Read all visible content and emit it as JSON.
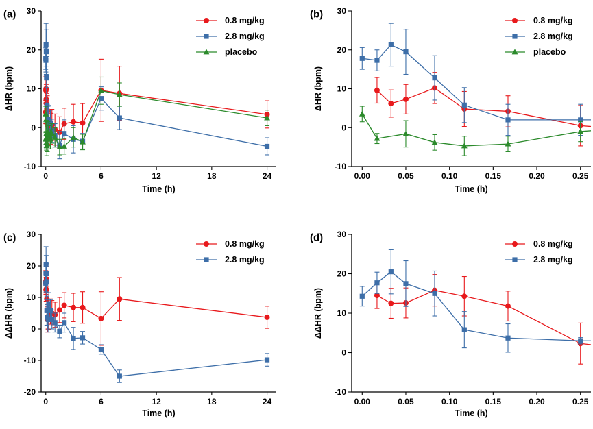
{
  "chart_data": [
    {
      "id": "a",
      "label": "(a)",
      "type": "line",
      "xlabel": "Time (h)",
      "ylabel": "ΔHR (bpm)",
      "xlim": [
        -0.5,
        25
      ],
      "ylim": [
        -10,
        30
      ],
      "xticks": [
        0,
        6,
        12,
        18,
        24
      ],
      "yticks": [
        -10,
        0,
        10,
        20,
        30
      ],
      "xticklabels": [
        "0",
        "6",
        "12",
        "18",
        "24"
      ],
      "yticklabels": [
        "-10",
        "0",
        "10",
        "20",
        "30"
      ],
      "series": [
        {
          "name": "0.8 mg/kg",
          "color": "#e8191c",
          "marker": "circle",
          "x": [
            0,
            0.017,
            0.033,
            0.05,
            0.083,
            0.117,
            0.167,
            0.25,
            0.33,
            0.5,
            0.67,
            1,
            1.5,
            2,
            3,
            4,
            6,
            8,
            24
          ],
          "y": [
            4,
            9.6,
            10,
            7.3,
            6.2,
            4.8,
            4.2,
            0.5,
            0,
            -0.3,
            0.7,
            -0.5,
            -1.2,
            1,
            1.5,
            1.2,
            9.6,
            8.8,
            3.4
          ],
          "err": [
            3,
            3.5,
            3.5,
            3.8,
            4,
            4,
            4,
            4,
            4,
            4,
            4,
            4,
            4,
            4,
            4.5,
            5,
            8,
            7,
            3.5
          ]
        },
        {
          "name": "2.8 mg/kg",
          "color": "#3d6ea8",
          "marker": "square",
          "x": [
            0,
            0.017,
            0.033,
            0.05,
            0.083,
            0.117,
            0.167,
            0.25,
            0.33,
            0.5,
            0.67,
            1,
            1.5,
            2,
            3,
            4,
            6,
            8,
            24
          ],
          "y": [
            17.8,
            17.3,
            21.3,
            19.5,
            12.8,
            5.8,
            2,
            2,
            2.2,
            1,
            -0.8,
            -2,
            -4.5,
            -1.5,
            -3,
            -3.5,
            7.5,
            2.5,
            -4.8
          ],
          "err": [
            2.8,
            3,
            5.5,
            5.8,
            5.5,
            4.5,
            4,
            3.5,
            3.5,
            3.5,
            3,
            3,
            3.5,
            3.5,
            3.5,
            2,
            3,
            3,
            2.2
          ]
        },
        {
          "name": "placebo",
          "color": "#2b8a2b",
          "marker": "triangle",
          "x": [
            0,
            0.017,
            0.033,
            0.05,
            0.083,
            0.117,
            0.167,
            0.25,
            0.33,
            0.5,
            0.67,
            1,
            1.5,
            2,
            3,
            4,
            6,
            8,
            24
          ],
          "y": [
            3.5,
            -2.8,
            -3,
            -1.6,
            -3.8,
            -4.7,
            -4.2,
            -1,
            -2,
            -3,
            -1.5,
            -2.5,
            -5,
            -4.8,
            -2.5,
            -3.7,
            9.5,
            8.5,
            2.5
          ],
          "err": [
            2,
            1.5,
            2,
            3.5,
            2,
            2.5,
            2,
            2.5,
            2.5,
            2.5,
            2.5,
            2.5,
            2,
            2,
            2.5,
            2,
            3.5,
            3,
            2
          ]
        }
      ]
    },
    {
      "id": "b",
      "label": "(b)",
      "type": "line",
      "xlabel": "Time (h)",
      "ylabel": "ΔHR (bpm)",
      "xlim": [
        -0.012,
        0.262
      ],
      "ylim": [
        -10,
        30
      ],
      "xticks": [
        0,
        0.05,
        0.1,
        0.15,
        0.2,
        0.25
      ],
      "yticks": [
        -10,
        0,
        10,
        20,
        30
      ],
      "xticklabels": [
        "0.00",
        "0.05",
        "0.10",
        "0.15",
        "0.20",
        "0.25"
      ],
      "yticklabels": [
        "-10",
        "0",
        "10",
        "20",
        "30"
      ],
      "series": [
        {
          "name": "0.8 mg/kg",
          "color": "#e8191c",
          "marker": "circle",
          "x": [
            0.017,
            0.033,
            0.05,
            0.083,
            0.117,
            0.167,
            0.25,
            0.262
          ],
          "y": [
            9.6,
            6.2,
            7.3,
            10.2,
            4.8,
            4.2,
            0.5,
            0.3
          ],
          "err": [
            3.3,
            3.5,
            3.8,
            4,
            4.5,
            4,
            5.2,
            0
          ]
        },
        {
          "name": "2.8 mg/kg",
          "color": "#3d6ea8",
          "marker": "square",
          "x": [
            0,
            0.017,
            0.033,
            0.05,
            0.083,
            0.117,
            0.167,
            0.25,
            0.262
          ],
          "y": [
            17.8,
            17.3,
            21.3,
            19.5,
            12.8,
            5.8,
            2,
            2,
            2
          ],
          "err": [
            2.8,
            2.7,
            5.5,
            5.8,
            5.7,
            4.5,
            4,
            4,
            0
          ]
        },
        {
          "name": "placebo",
          "color": "#2b8a2b",
          "marker": "triangle",
          "x": [
            0,
            0.017,
            0.05,
            0.083,
            0.117,
            0.167,
            0.25,
            0.262
          ],
          "y": [
            3.5,
            -2.8,
            -1.6,
            -3.8,
            -4.7,
            -4.2,
            -1,
            -0.8
          ],
          "err": [
            2,
            1.3,
            3.4,
            2,
            2.5,
            2,
            2.6,
            0
          ]
        }
      ]
    },
    {
      "id": "c",
      "label": "(c)",
      "type": "line",
      "xlabel": "Time (h)",
      "ylabel": "ΔΔHR (bpm)",
      "xlim": [
        -0.5,
        25
      ],
      "ylim": [
        -20,
        30
      ],
      "xticks": [
        0,
        6,
        12,
        18,
        24
      ],
      "yticks": [
        -20,
        -10,
        0,
        10,
        20,
        30
      ],
      "xticklabels": [
        "0",
        "6",
        "12",
        "18",
        "24"
      ],
      "yticklabels": [
        "-20",
        "-10",
        "0",
        "10",
        "20",
        "30"
      ],
      "series": [
        {
          "name": "0.8 mg/kg",
          "color": "#e8191c",
          "marker": "circle",
          "x": [
            0,
            0.017,
            0.033,
            0.05,
            0.083,
            0.117,
            0.167,
            0.25,
            0.33,
            0.5,
            0.67,
            1,
            1.5,
            2,
            3,
            4,
            6,
            8,
            24
          ],
          "y": [
            15,
            14.5,
            12.5,
            12.6,
            15.8,
            9.5,
            3,
            4,
            3.8,
            5.5,
            5,
            4.5,
            6,
            7.5,
            6.8,
            6.8,
            3.3,
            9.5,
            3.7
          ],
          "err": [
            3.5,
            3.5,
            3.8,
            3.8,
            4,
            4,
            4,
            4,
            4,
            4,
            4,
            4,
            4,
            4,
            4.5,
            5,
            8.5,
            6.8,
            3.5
          ]
        },
        {
          "name": "2.8 mg/kg",
          "color": "#3d6ea8",
          "marker": "square",
          "x": [
            0,
            0.017,
            0.033,
            0.05,
            0.083,
            0.117,
            0.167,
            0.25,
            0.33,
            0.5,
            0.67,
            1,
            1.5,
            2,
            3,
            4,
            6,
            8,
            24
          ],
          "y": [
            14.5,
            17.7,
            20.5,
            17.5,
            15,
            5.8,
            3.7,
            3,
            8,
            5.8,
            3,
            2,
            -0.8,
            2,
            -3,
            -2.8,
            -6.5,
            -15,
            -9.8
          ],
          "err": [
            2.5,
            2.7,
            5.6,
            5.8,
            5.7,
            4.6,
            4,
            4,
            3.5,
            3.5,
            3,
            3,
            2,
            3,
            3.5,
            2,
            1.5,
            2,
            2
          ]
        }
      ]
    },
    {
      "id": "d",
      "label": "(d)",
      "type": "line",
      "xlabel": "Time (h)",
      "ylabel": "ΔΔHR (bpm)",
      "xlim": [
        -0.012,
        0.262
      ],
      "ylim": [
        -10,
        30
      ],
      "xticks": [
        0,
        0.05,
        0.1,
        0.15,
        0.2,
        0.25
      ],
      "yticks": [
        -10,
        0,
        10,
        20,
        30
      ],
      "xticklabels": [
        "0.00",
        "0.05",
        "0.10",
        "0.15",
        "0.20",
        "0.25"
      ],
      "yticklabels": [
        "-10",
        "0",
        "10",
        "20",
        "30"
      ],
      "series": [
        {
          "name": "0.8 mg/kg",
          "color": "#e8191c",
          "marker": "circle",
          "x": [
            0.017,
            0.033,
            0.05,
            0.083,
            0.117,
            0.167,
            0.25,
            0.262
          ],
          "y": [
            14.5,
            12.5,
            12.6,
            15.8,
            14.3,
            11.8,
            2.3,
            2
          ],
          "err": [
            3.3,
            3.8,
            3.8,
            4,
            5,
            3.8,
            5.2,
            0
          ]
        },
        {
          "name": "2.8 mg/kg",
          "color": "#3d6ea8",
          "marker": "square",
          "x": [
            0,
            0.017,
            0.033,
            0.05,
            0.083,
            0.117,
            0.167,
            0.25,
            0.262
          ],
          "y": [
            14.3,
            17.7,
            20.5,
            17.5,
            15,
            5.8,
            3.7,
            3,
            3
          ],
          "err": [
            2.5,
            2.7,
            5.6,
            5.8,
            5.7,
            4.6,
            3.6,
            0.8,
            0
          ]
        }
      ]
    }
  ]
}
